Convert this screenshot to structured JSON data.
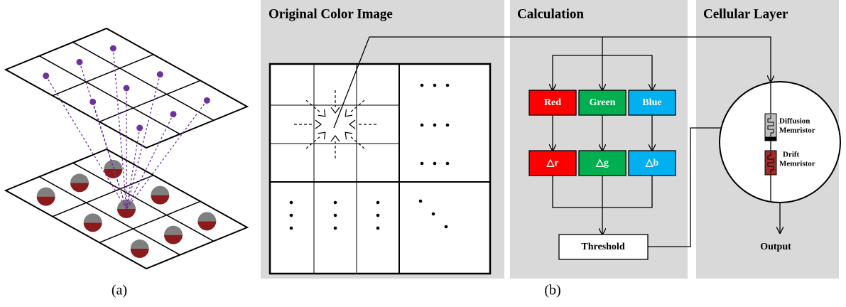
{
  "panel_a": {
    "caption": "(a)"
  },
  "panel_b": {
    "caption": "(b)",
    "original": {
      "title": "Original Color Image"
    },
    "calculation": {
      "title": "Calculation",
      "channels": [
        "Red",
        "Green",
        "Blue"
      ],
      "deltas": [
        "△r",
        "△g",
        "△b"
      ],
      "threshold": "Threshold"
    },
    "cellular": {
      "title": "Cellular Layer",
      "diffusion": [
        "Diffusion",
        "Memristor"
      ],
      "drift": [
        "Drift",
        "Memristor"
      ],
      "output": "Output"
    }
  }
}
